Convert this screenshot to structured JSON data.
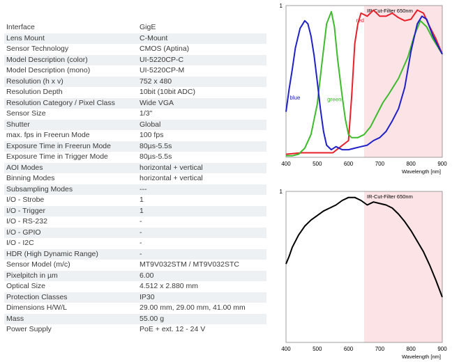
{
  "specs": [
    {
      "label": "Interface",
      "value": "GigE"
    },
    {
      "label": "Lens Mount",
      "value": "C-Mount"
    },
    {
      "label": "Sensor Technology",
      "value": "CMOS (Aptina)"
    },
    {
      "label": "Model Description (color)",
      "value": "UI-5220CP-C"
    },
    {
      "label": "Model Description (mono)",
      "value": "UI-5220CP-M"
    },
    {
      "label": "Resolution (h x v)",
      "value": "752 x 480"
    },
    {
      "label": "Resolution Depth",
      "value": "10bit (10bit ADC)"
    },
    {
      "label": "Resolution Category / Pixel Class",
      "value": "Wide VGA"
    },
    {
      "label": "Sensor Size",
      "value": "1/3\""
    },
    {
      "label": "Shutter",
      "value": "Global"
    },
    {
      "label": "max. fps in Freerun Mode",
      "value": "100 fps"
    },
    {
      "label": "Exposure Time in Freerun Mode",
      "value": "80µs-5.5s"
    },
    {
      "label": "Exposure Time in Trigger Mode",
      "value": "80µs-5.5s"
    },
    {
      "label": "AOI Modes",
      "value": "horizontal + vertical"
    },
    {
      "label": "Binning Modes",
      "value": "horizontal + vertical"
    },
    {
      "label": "Subsampling Modes",
      "value": "---"
    },
    {
      "label": "I/O - Strobe",
      "value": "1"
    },
    {
      "label": "I/O - Trigger",
      "value": "1"
    },
    {
      "label": "I/O - RS-232",
      "value": "-"
    },
    {
      "label": "I/O - GPIO",
      "value": "-"
    },
    {
      "label": "I/O - I2C",
      "value": "-"
    },
    {
      "label": "HDR (High Dynamic Range)",
      "value": "-"
    },
    {
      "label": "Sensor Model (m/c)",
      "value": "MT9V032STM / MT9V032STC"
    },
    {
      "label": "Pixelpitch in µm",
      "value": "6.00"
    },
    {
      "label": "Optical Size",
      "value": "4.512 x 2.880 mm"
    },
    {
      "label": "Protection Classes",
      "value": "IP30"
    },
    {
      "label": "Dimensions H/W/L",
      "value": "29.00 mm, 29.00 mm, 41.00 mm"
    },
    {
      "label": "Mass",
      "value": "55.00 g"
    },
    {
      "label": "Power Supply",
      "value": "PoE + ext. 12 - 24 V"
    }
  ],
  "colors": {
    "row_stripe": "#eef1f3",
    "ir_band": "#fbe3e6",
    "red": "#e8202a",
    "green": "#3dbb2c",
    "blue": "#2020c8",
    "mono": "#000000"
  },
  "chart_data": [
    {
      "type": "line",
      "title": "",
      "xlabel": "Wavelength [nm]",
      "ylabel": "",
      "xlim": [
        400,
        900
      ],
      "ylim": [
        0,
        1
      ],
      "x_ticks": [
        400,
        500,
        600,
        700,
        800,
        900
      ],
      "y_ticks": [
        1
      ],
      "annotation": {
        "text": "IR-Cut-Filter 650nm",
        "band": [
          650,
          900
        ]
      },
      "series": [
        {
          "name": "red",
          "label_at": [
            624,
            0.89
          ],
          "points": [
            [
              400,
              0.02
            ],
            [
              450,
              0.03
            ],
            [
              500,
              0.03
            ],
            [
              550,
              0.03
            ],
            [
              575,
              0.07
            ],
            [
              600,
              0.11
            ],
            [
              610,
              0.4
            ],
            [
              620,
              0.75
            ],
            [
              630,
              0.88
            ],
            [
              640,
              0.95
            ],
            [
              660,
              0.93
            ],
            [
              680,
              0.97
            ],
            [
              700,
              0.93
            ],
            [
              720,
              0.93
            ],
            [
              740,
              0.95
            ],
            [
              760,
              0.92
            ],
            [
              780,
              0.9
            ],
            [
              800,
              0.91
            ],
            [
              820,
              0.97
            ],
            [
              840,
              0.95
            ],
            [
              860,
              0.86
            ],
            [
              880,
              0.78
            ],
            [
              900,
              0.68
            ]
          ]
        },
        {
          "name": "green",
          "label_at": [
            532,
            0.37
          ],
          "points": [
            [
              400,
              0.01
            ],
            [
              420,
              0.01
            ],
            [
              440,
              0.02
            ],
            [
              460,
              0.06
            ],
            [
              480,
              0.15
            ],
            [
              500,
              0.35
            ],
            [
              515,
              0.62
            ],
            [
              530,
              0.88
            ],
            [
              545,
              0.96
            ],
            [
              555,
              0.86
            ],
            [
              565,
              0.65
            ],
            [
              580,
              0.4
            ],
            [
              590,
              0.25
            ],
            [
              600,
              0.15
            ],
            [
              610,
              0.13
            ],
            [
              630,
              0.13
            ],
            [
              650,
              0.15
            ],
            [
              670,
              0.2
            ],
            [
              690,
              0.28
            ],
            [
              710,
              0.36
            ],
            [
              730,
              0.42
            ],
            [
              760,
              0.52
            ],
            [
              790,
              0.66
            ],
            [
              810,
              0.8
            ],
            [
              830,
              0.9
            ],
            [
              850,
              0.86
            ],
            [
              870,
              0.78
            ],
            [
              900,
              0.68
            ]
          ]
        },
        {
          "name": "blue",
          "label_at": [
            412,
            0.38
          ],
          "points": [
            [
              400,
              0.3
            ],
            [
              410,
              0.45
            ],
            [
              420,
              0.58
            ],
            [
              430,
              0.72
            ],
            [
              445,
              0.85
            ],
            [
              460,
              0.9
            ],
            [
              470,
              0.88
            ],
            [
              480,
              0.8
            ],
            [
              490,
              0.67
            ],
            [
              500,
              0.5
            ],
            [
              510,
              0.32
            ],
            [
              520,
              0.17
            ],
            [
              530,
              0.08
            ],
            [
              545,
              0.05
            ],
            [
              560,
              0.07
            ],
            [
              580,
              0.05
            ],
            [
              600,
              0.05
            ],
            [
              620,
              0.06
            ],
            [
              640,
              0.07
            ],
            [
              660,
              0.08
            ],
            [
              680,
              0.11
            ],
            [
              700,
              0.13
            ],
            [
              720,
              0.17
            ],
            [
              740,
              0.24
            ],
            [
              760,
              0.32
            ],
            [
              780,
              0.46
            ],
            [
              800,
              0.7
            ],
            [
              820,
              0.88
            ],
            [
              835,
              0.93
            ],
            [
              850,
              0.91
            ],
            [
              870,
              0.8
            ],
            [
              900,
              0.68
            ]
          ]
        }
      ]
    },
    {
      "type": "line",
      "title": "",
      "xlabel": "Wavelength [nm]",
      "ylabel": "",
      "xlim": [
        400,
        900
      ],
      "ylim": [
        0,
        1
      ],
      "x_ticks": [
        400,
        500,
        600,
        700,
        800,
        900
      ],
      "y_ticks": [
        1
      ],
      "annotation": {
        "text": "IR-Cut-Filter 650nm",
        "band": [
          650,
          900
        ]
      },
      "series": [
        {
          "name": "",
          "points": [
            [
              400,
              0.52
            ],
            [
              410,
              0.57
            ],
            [
              420,
              0.63
            ],
            [
              440,
              0.71
            ],
            [
              460,
              0.77
            ],
            [
              480,
              0.81
            ],
            [
              500,
              0.84
            ],
            [
              520,
              0.87
            ],
            [
              540,
              0.89
            ],
            [
              560,
              0.91
            ],
            [
              580,
              0.94
            ],
            [
              600,
              0.96
            ],
            [
              620,
              0.96
            ],
            [
              640,
              0.94
            ],
            [
              660,
              0.91
            ],
            [
              680,
              0.93
            ],
            [
              700,
              0.92
            ],
            [
              720,
              0.91
            ],
            [
              740,
              0.89
            ],
            [
              760,
              0.85
            ],
            [
              780,
              0.8
            ],
            [
              800,
              0.74
            ],
            [
              820,
              0.67
            ],
            [
              840,
              0.6
            ],
            [
              860,
              0.51
            ],
            [
              880,
              0.41
            ],
            [
              900,
              0.3
            ]
          ]
        }
      ]
    }
  ]
}
